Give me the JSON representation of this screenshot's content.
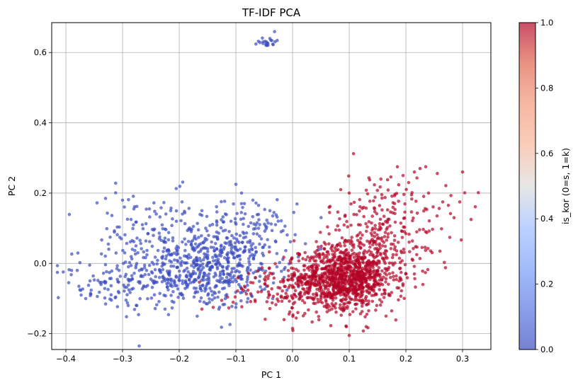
{
  "chart_data": {
    "type": "scatter",
    "title": "TF-IDF PCA",
    "xlabel": "PC 1",
    "ylabel": "PC 2",
    "xlim": [
      -0.425,
      0.35
    ],
    "ylim": [
      -0.245,
      0.685
    ],
    "xticks": [
      -0.4,
      -0.3,
      -0.2,
      -0.1,
      0.0,
      0.1,
      0.2,
      0.3
    ],
    "xtick_labels": [
      "−0.4",
      "−0.3",
      "−0.2",
      "−0.1",
      "0.0",
      "0.1",
      "0.2",
      "0.3"
    ],
    "yticks": [
      -0.2,
      0.0,
      0.2,
      0.4,
      0.6
    ],
    "ytick_labels": [
      "−0.2",
      "0.0",
      "0.2",
      "0.4",
      "0.6"
    ],
    "grid": true,
    "colormap": "coolwarm",
    "point_alpha": 0.7,
    "colorbar": {
      "label": "is_kor (0=s, 1=k)",
      "range": [
        0.0,
        1.0
      ],
      "ticks": [
        0.0,
        0.2,
        0.4,
        0.6,
        0.8,
        1.0
      ],
      "tick_labels": [
        "0.0",
        "0.2",
        "0.4",
        "0.6",
        "0.8",
        "1.0"
      ]
    },
    "series": [
      {
        "value": 0,
        "color": "#3b4cc0",
        "clusters": [
          {
            "center": [
              -0.17,
              -0.03
            ],
            "spread": [
              0.065,
              0.05
            ],
            "n": 420
          },
          {
            "center": [
              -0.1,
              0.05
            ],
            "spread": [
              0.05,
              0.06
            ],
            "n": 260
          },
          {
            "center": [
              -0.25,
              0.06
            ],
            "spread": [
              0.06,
              0.07
            ],
            "n": 140
          },
          {
            "center": [
              -0.33,
              -0.06
            ],
            "spread": [
              0.04,
              0.035
            ],
            "n": 60
          },
          {
            "center": [
              -0.045,
              0.632
            ],
            "spread": [
              0.008,
              0.008
            ],
            "n": 20
          }
        ],
        "points": [
          [
            -0.395,
            -0.055
          ],
          [
            -0.39,
            -0.02
          ],
          [
            -0.38,
            -0.02
          ],
          [
            -0.377,
            -0.065
          ],
          [
            -0.373,
            -0.09
          ],
          [
            -0.365,
            -0.1
          ],
          [
            -0.345,
            0.172
          ],
          [
            -0.33,
            0.185
          ],
          [
            -0.325,
            0.055
          ],
          [
            -0.3,
            0.18
          ],
          [
            -0.285,
            0.125
          ],
          [
            -0.29,
            -0.12
          ],
          [
            -0.28,
            0.155
          ],
          [
            -0.275,
            -0.12
          ],
          [
            -0.265,
            0.11
          ],
          [
            -0.255,
            0.085
          ],
          [
            -0.245,
            0.095
          ],
          [
            -0.235,
            0.07
          ],
          [
            -0.225,
            -0.13
          ],
          [
            -0.215,
            0.15
          ],
          [
            -0.205,
            0.12
          ],
          [
            -0.195,
            0.175
          ],
          [
            -0.175,
            0.105
          ],
          [
            -0.16,
            0.15
          ],
          [
            -0.1,
            0.225
          ],
          [
            -0.09,
            0.2
          ],
          [
            -0.085,
            0.17
          ],
          [
            -0.07,
            0.18
          ],
          [
            -0.06,
            0.165
          ],
          [
            -0.04,
            0.15
          ],
          [
            -0.035,
            0.135
          ],
          [
            -0.03,
            0.11
          ],
          [
            -0.02,
            0.09
          ],
          [
            -0.035,
            -0.1
          ],
          [
            -0.1,
            -0.125
          ],
          [
            -0.13,
            -0.13
          ],
          [
            -0.08,
            -0.11
          ],
          [
            -0.06,
            0.1
          ],
          [
            -0.045,
            0.62
          ],
          [
            -0.04,
            0.64
          ]
        ]
      },
      {
        "value": 1,
        "color": "#b40426",
        "clusters": [
          {
            "center": [
              0.095,
              -0.04
            ],
            "spread": [
              0.042,
              0.042
            ],
            "n": 800
          },
          {
            "center": [
              0.06,
              -0.06
            ],
            "spread": [
              0.05,
              0.05
            ],
            "n": 220
          },
          {
            "center": [
              0.17,
              0.12
            ],
            "spread": [
              0.055,
              0.07
            ],
            "n": 180
          },
          {
            "center": [
              0.14,
              0.03
            ],
            "spread": [
              0.05,
              0.05
            ],
            "n": 160
          },
          {
            "center": [
              -0.02,
              -0.07
            ],
            "spread": [
              0.045,
              0.035
            ],
            "n": 90
          }
        ],
        "points": [
          [
            0.3,
            0.26
          ],
          [
            0.315,
            0.125
          ],
          [
            0.295,
            0.175
          ],
          [
            0.285,
            0.13
          ],
          [
            0.275,
            0.165
          ],
          [
            0.265,
            0.175
          ],
          [
            0.255,
            0.135
          ],
          [
            0.24,
            0.2
          ],
          [
            0.235,
            0.275
          ],
          [
            0.225,
            0.27
          ],
          [
            0.215,
            0.26
          ],
          [
            0.21,
            0.195
          ],
          [
            0.195,
            0.25
          ],
          [
            0.185,
            0.275
          ],
          [
            0.18,
            0.17
          ],
          [
            0.1,
            -0.205
          ],
          [
            0.095,
            -0.18
          ],
          [
            0.13,
            -0.18
          ],
          [
            0.085,
            0.21
          ],
          [
            0.1,
            0.2
          ],
          [
            0.0,
            -0.185
          ],
          [
            -0.015,
            -0.16
          ],
          [
            -0.16,
            -0.13
          ],
          [
            -0.125,
            -0.105
          ],
          [
            -0.14,
            -0.125
          ],
          [
            0.175,
            -0.135
          ],
          [
            0.165,
            -0.15
          ],
          [
            0.2,
            -0.03
          ],
          [
            0.215,
            -0.03
          ],
          [
            0.23,
            -0.06
          ]
        ]
      }
    ]
  }
}
